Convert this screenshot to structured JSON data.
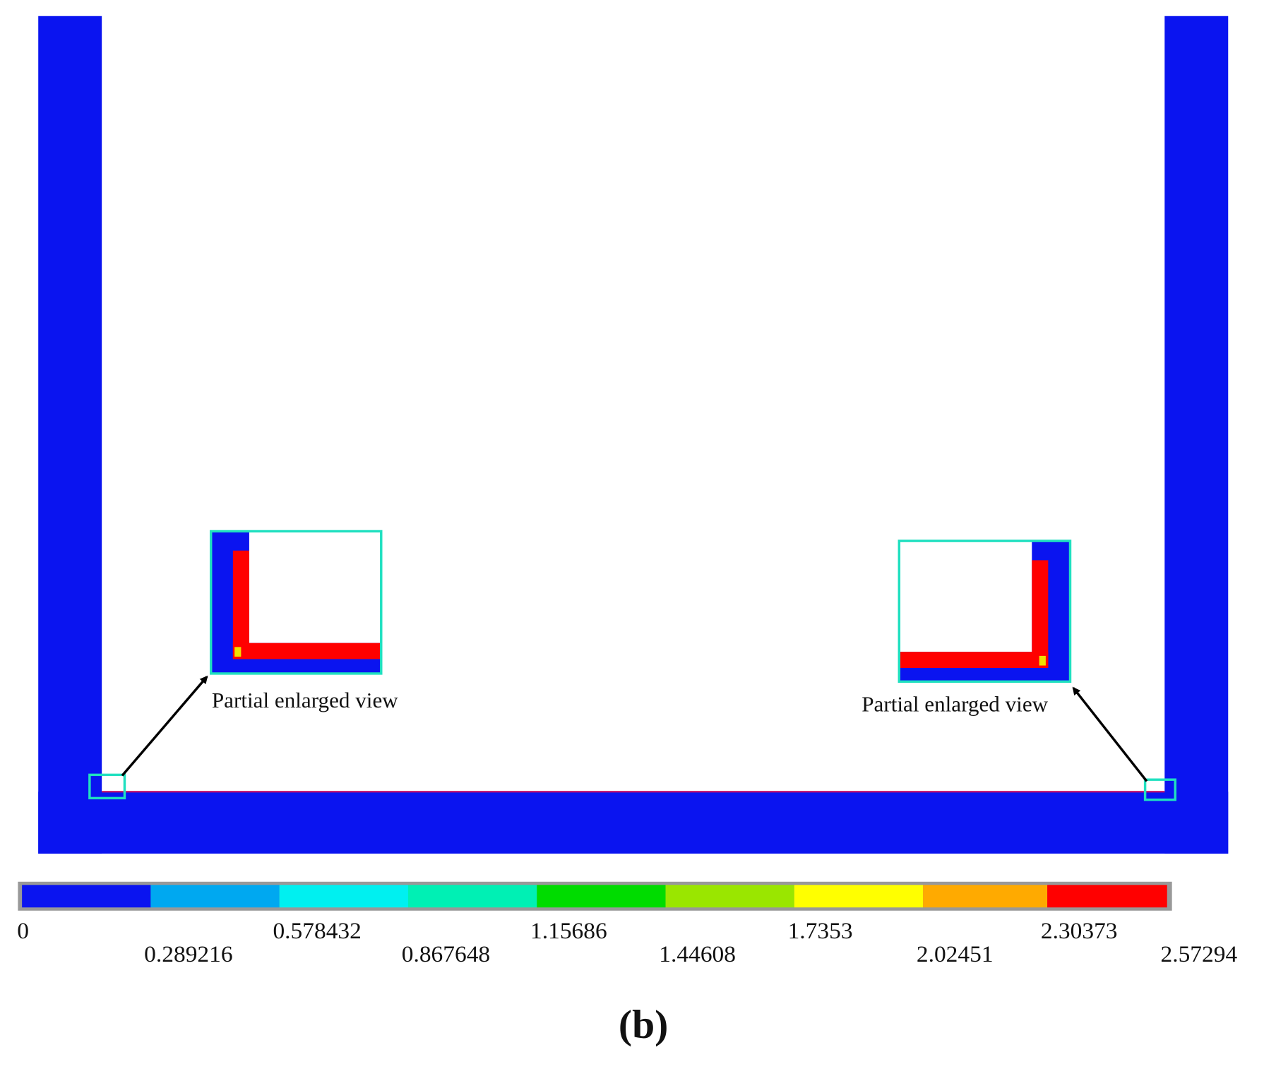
{
  "figure": {
    "insets": [
      {
        "label": "Partial enlarged view"
      },
      {
        "label": "Partial enlarged view"
      }
    ],
    "colorbar": {
      "ticks": [
        0,
        0.289216,
        0.578432,
        0.867648,
        1.15686,
        1.44608,
        1.7353,
        2.02451,
        2.30373,
        2.57294
      ],
      "colors": [
        "#0a14f0",
        "#00a8f0",
        "#00f0f0",
        "#00f0b4",
        "#00dc00",
        "#9ae600",
        "#ffff00",
        "#ffaa00",
        "#ff0000"
      ]
    },
    "caption": "(b)"
  }
}
